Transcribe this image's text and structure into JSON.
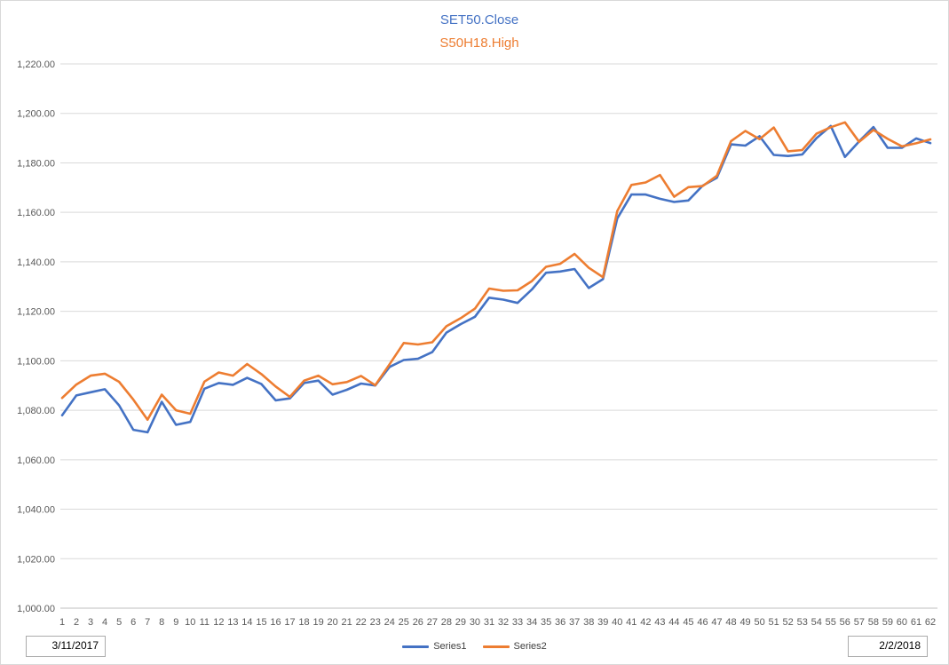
{
  "title": {
    "line1": "SET50.Close",
    "line2": "S50H18.High"
  },
  "colors": {
    "series1": "#4472C4",
    "series2": "#ED7D31",
    "title_line1": "#4472C4",
    "title_line2": "#ED7D31",
    "axis_text": "#595959",
    "gridline": "#D9D9D9",
    "axis_line": "#BFBFBF"
  },
  "legend": [
    {
      "label": "Series1",
      "color": "#4472C4"
    },
    {
      "label": "Series2",
      "color": "#ED7D31"
    }
  ],
  "footer": {
    "left_date": "3/11/2017",
    "right_date": "2/2/2018"
  },
  "chart_data": {
    "type": "line",
    "title": "SET50.Close / S50H18.High",
    "xlabel": "",
    "ylabel": "",
    "ylim": [
      1000,
      1220
    ],
    "ytick_step": 20,
    "yticks": [
      1000,
      1020,
      1040,
      1060,
      1080,
      1100,
      1120,
      1140,
      1160,
      1180,
      1200,
      1220
    ],
    "grid": true,
    "legend_position": "bottom",
    "x": [
      1,
      2,
      3,
      4,
      5,
      6,
      7,
      8,
      9,
      10,
      11,
      12,
      13,
      14,
      15,
      16,
      17,
      18,
      19,
      20,
      21,
      22,
      23,
      24,
      25,
      26,
      27,
      28,
      29,
      30,
      31,
      32,
      33,
      34,
      35,
      36,
      37,
      38,
      39,
      40,
      41,
      42,
      43,
      44,
      45,
      46,
      47,
      48,
      49,
      50,
      51,
      52,
      53,
      54,
      55,
      56,
      57,
      58,
      59,
      60,
      61,
      62
    ],
    "series": [
      {
        "name": "Series1",
        "label": "SET50.Close",
        "color": "#4472C4",
        "values": [
          1078.0,
          1086.0,
          1087.3,
          1088.5,
          1082.0,
          1072.1,
          1071.1,
          1083.4,
          1074.1,
          1075.3,
          1088.7,
          1091.0,
          1090.3,
          1093.1,
          1090.6,
          1084.0,
          1084.8,
          1091.0,
          1092.0,
          1086.3,
          1088.3,
          1090.8,
          1090.0,
          1097.5,
          1100.3,
          1100.8,
          1103.5,
          1111.4,
          1114.8,
          1117.8,
          1125.5,
          1124.7,
          1123.4,
          1128.8,
          1135.6,
          1136.1,
          1137.1,
          1129.4,
          1133.0,
          1157.5,
          1167.2,
          1167.2,
          1165.5,
          1164.2,
          1164.8,
          1170.8,
          1174.0,
          1187.5,
          1187.0,
          1190.8,
          1183.2,
          1182.8,
          1183.4,
          1190.0,
          1194.9,
          1182.4,
          1188.7,
          1194.5,
          1186.1,
          1186.1,
          1189.9,
          1188.0
        ]
      },
      {
        "name": "Series2",
        "label": "S50H18.High",
        "color": "#ED7D31",
        "values": [
          1085.0,
          1090.4,
          1094.0,
          1094.8,
          1091.5,
          1084.3,
          1076.2,
          1086.3,
          1080.0,
          1078.6,
          1091.6,
          1095.3,
          1094.0,
          1098.7,
          1094.6,
          1089.6,
          1085.4,
          1092.0,
          1094.0,
          1090.5,
          1091.4,
          1093.9,
          1090.1,
          1098.6,
          1107.2,
          1106.6,
          1107.5,
          1114.0,
          1117.2,
          1121.1,
          1129.2,
          1128.3,
          1128.5,
          1132.2,
          1138.0,
          1139.2,
          1143.2,
          1137.6,
          1133.8,
          1160.5,
          1171.1,
          1172.1,
          1175.1,
          1166.3,
          1170.2,
          1170.6,
          1174.8,
          1188.8,
          1192.9,
          1189.6,
          1194.3,
          1184.7,
          1185.2,
          1191.8,
          1194.4,
          1196.4,
          1188.5,
          1193.3,
          1189.7,
          1186.7,
          1187.9,
          1189.5
        ]
      }
    ]
  }
}
